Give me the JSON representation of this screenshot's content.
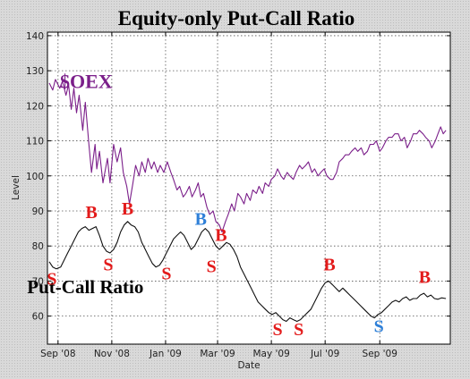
{
  "chart_data": {
    "type": "line",
    "title": "Equity-only Put-Call Ratio",
    "xlabel": "Date",
    "ylabel": "Level",
    "ylim": [
      52,
      141
    ],
    "xlim": [
      "2008-08-20",
      "2009-11-20"
    ],
    "yticks": [
      60,
      70,
      80,
      90,
      100,
      110,
      120,
      130,
      140
    ],
    "xticks": [
      {
        "date": "2008-09-01",
        "label": "Sep '08"
      },
      {
        "date": "2008-11-01",
        "label": "Nov '08"
      },
      {
        "date": "2009-01-01",
        "label": "Jan '09"
      },
      {
        "date": "2009-03-01",
        "label": "Mar '09"
      },
      {
        "date": "2009-05-01",
        "label": "May '09"
      },
      {
        "date": "2009-07-01",
        "label": "Jul '09"
      },
      {
        "date": "2009-09-01",
        "label": "Sep '09"
      }
    ],
    "grid": true,
    "colors": {
      "oex": "#7b1f8a",
      "ratio": "#111111",
      "buy_red": "#e31b1b",
      "sell_red": "#e31b1b",
      "blue": "#2f80d8"
    },
    "series": [
      {
        "name": "$OEX",
        "label_text": "$OEX",
        "label_at": {
          "date": "2008-10-03",
          "value": 125
        },
        "points": [
          [
            "2008-08-22",
            126.5
          ],
          [
            "2008-08-26",
            124.5
          ],
          [
            "2008-08-29",
            127.5
          ],
          [
            "2008-09-03",
            125
          ],
          [
            "2008-09-06",
            127
          ],
          [
            "2008-09-10",
            123
          ],
          [
            "2008-09-13",
            126
          ],
          [
            "2008-09-16",
            119
          ],
          [
            "2008-09-19",
            125
          ],
          [
            "2008-09-22",
            118
          ],
          [
            "2008-09-25",
            123
          ],
          [
            "2008-09-29",
            113
          ],
          [
            "2008-10-02",
            121
          ],
          [
            "2008-10-06",
            109
          ],
          [
            "2008-10-09",
            101
          ],
          [
            "2008-10-13",
            109
          ],
          [
            "2008-10-15",
            102
          ],
          [
            "2008-10-18",
            107
          ],
          [
            "2008-10-22",
            98
          ],
          [
            "2008-10-27",
            105
          ],
          [
            "2008-10-30",
            98
          ],
          [
            "2008-11-03",
            109
          ],
          [
            "2008-11-07",
            104
          ],
          [
            "2008-11-11",
            108
          ],
          [
            "2008-11-14",
            101
          ],
          [
            "2008-11-18",
            97
          ],
          [
            "2008-11-21",
            92
          ],
          [
            "2008-11-25",
            98
          ],
          [
            "2008-11-28",
            103
          ],
          [
            "2008-12-02",
            100
          ],
          [
            "2008-12-05",
            104
          ],
          [
            "2008-12-09",
            101
          ],
          [
            "2008-12-12",
            105
          ],
          [
            "2008-12-16",
            102
          ],
          [
            "2008-12-19",
            104
          ],
          [
            "2008-12-23",
            101
          ],
          [
            "2008-12-26",
            103
          ],
          [
            "2008-12-30",
            101
          ],
          [
            "2009-01-03",
            104
          ],
          [
            "2009-01-07",
            101
          ],
          [
            "2009-01-10",
            99
          ],
          [
            "2009-01-14",
            96
          ],
          [
            "2009-01-17",
            97
          ],
          [
            "2009-01-21",
            94
          ],
          [
            "2009-01-24",
            95
          ],
          [
            "2009-01-28",
            97
          ],
          [
            "2009-01-31",
            94
          ],
          [
            "2009-02-04",
            96
          ],
          [
            "2009-02-07",
            98
          ],
          [
            "2009-02-10",
            94
          ],
          [
            "2009-02-13",
            95
          ],
          [
            "2009-02-17",
            91
          ],
          [
            "2009-02-20",
            89
          ],
          [
            "2009-02-24",
            90
          ],
          [
            "2009-02-27",
            87
          ],
          [
            "2009-03-03",
            86
          ],
          [
            "2009-03-06",
            84
          ],
          [
            "2009-03-10",
            87
          ],
          [
            "2009-03-13",
            89
          ],
          [
            "2009-03-17",
            92
          ],
          [
            "2009-03-20",
            90
          ],
          [
            "2009-03-24",
            95
          ],
          [
            "2009-03-27",
            94
          ],
          [
            "2009-03-31",
            92
          ],
          [
            "2009-04-03",
            95
          ],
          [
            "2009-04-07",
            93
          ],
          [
            "2009-04-10",
            96
          ],
          [
            "2009-04-14",
            95
          ],
          [
            "2009-04-17",
            97
          ],
          [
            "2009-04-21",
            95
          ],
          [
            "2009-04-24",
            98
          ],
          [
            "2009-04-28",
            97
          ],
          [
            "2009-05-01",
            99
          ],
          [
            "2009-05-05",
            100
          ],
          [
            "2009-05-08",
            102
          ],
          [
            "2009-05-12",
            100
          ],
          [
            "2009-05-15",
            99
          ],
          [
            "2009-05-19",
            101
          ],
          [
            "2009-05-22",
            100
          ],
          [
            "2009-05-26",
            99
          ],
          [
            "2009-05-29",
            101
          ],
          [
            "2009-06-02",
            103
          ],
          [
            "2009-06-05",
            102
          ],
          [
            "2009-06-09",
            103
          ],
          [
            "2009-06-12",
            104
          ],
          [
            "2009-06-16",
            101
          ],
          [
            "2009-06-19",
            102
          ],
          [
            "2009-06-23",
            100
          ],
          [
            "2009-06-26",
            101
          ],
          [
            "2009-06-30",
            102
          ],
          [
            "2009-07-03",
            100
          ],
          [
            "2009-07-07",
            99
          ],
          [
            "2009-07-10",
            99
          ],
          [
            "2009-07-14",
            101
          ],
          [
            "2009-07-17",
            104
          ],
          [
            "2009-07-21",
            105
          ],
          [
            "2009-07-24",
            106
          ],
          [
            "2009-07-28",
            106
          ],
          [
            "2009-07-31",
            107
          ],
          [
            "2009-08-04",
            108
          ],
          [
            "2009-08-07",
            107
          ],
          [
            "2009-08-11",
            108
          ],
          [
            "2009-08-14",
            106
          ],
          [
            "2009-08-18",
            107
          ],
          [
            "2009-08-21",
            109
          ],
          [
            "2009-08-25",
            109
          ],
          [
            "2009-08-28",
            110
          ],
          [
            "2009-09-01",
            107
          ],
          [
            "2009-09-04",
            108
          ],
          [
            "2009-09-08",
            110
          ],
          [
            "2009-09-11",
            111
          ],
          [
            "2009-09-15",
            111
          ],
          [
            "2009-09-18",
            112
          ],
          [
            "2009-09-22",
            112
          ],
          [
            "2009-09-25",
            110
          ],
          [
            "2009-09-29",
            111
          ],
          [
            "2009-10-02",
            108
          ],
          [
            "2009-10-06",
            110
          ],
          [
            "2009-10-09",
            112
          ],
          [
            "2009-10-13",
            112
          ],
          [
            "2009-10-16",
            113
          ],
          [
            "2009-10-20",
            112
          ],
          [
            "2009-10-23",
            111
          ],
          [
            "2009-10-27",
            110
          ],
          [
            "2009-10-30",
            108
          ],
          [
            "2009-11-03",
            110
          ],
          [
            "2009-11-06",
            112
          ],
          [
            "2009-11-09",
            114
          ],
          [
            "2009-11-12",
            112
          ],
          [
            "2009-11-15",
            113
          ]
        ]
      },
      {
        "name": "Put-Call Ratio",
        "label_text": "Put-Call Ratio",
        "label_at": {
          "date": "2008-10-02",
          "value": 66.5
        },
        "points": [
          [
            "2008-08-22",
            75.5
          ],
          [
            "2008-08-26",
            74
          ],
          [
            "2008-08-30",
            73.5
          ],
          [
            "2008-09-04",
            74
          ],
          [
            "2008-09-08",
            76
          ],
          [
            "2008-09-12",
            78
          ],
          [
            "2008-09-16",
            80
          ],
          [
            "2008-09-20",
            82
          ],
          [
            "2008-09-24",
            84
          ],
          [
            "2008-09-28",
            85
          ],
          [
            "2008-10-02",
            85.5
          ],
          [
            "2008-10-06",
            84.5
          ],
          [
            "2008-10-10",
            85
          ],
          [
            "2008-10-14",
            85.5
          ],
          [
            "2008-10-18",
            83
          ],
          [
            "2008-10-22",
            80
          ],
          [
            "2008-10-26",
            78.5
          ],
          [
            "2008-10-30",
            78
          ],
          [
            "2008-11-03",
            79
          ],
          [
            "2008-11-07",
            81
          ],
          [
            "2008-11-11",
            84
          ],
          [
            "2008-11-15",
            86
          ],
          [
            "2008-11-19",
            87
          ],
          [
            "2008-11-23",
            86
          ],
          [
            "2008-11-27",
            85.5
          ],
          [
            "2008-12-01",
            84
          ],
          [
            "2008-12-05",
            81
          ],
          [
            "2008-12-09",
            79
          ],
          [
            "2008-12-13",
            77
          ],
          [
            "2008-12-17",
            75
          ],
          [
            "2008-12-21",
            74
          ],
          [
            "2008-12-25",
            74.5
          ],
          [
            "2008-12-29",
            76
          ],
          [
            "2009-01-02",
            78
          ],
          [
            "2009-01-06",
            80
          ],
          [
            "2009-01-10",
            82
          ],
          [
            "2009-01-14",
            83
          ],
          [
            "2009-01-18",
            84
          ],
          [
            "2009-01-22",
            83
          ],
          [
            "2009-01-26",
            81
          ],
          [
            "2009-01-30",
            79
          ],
          [
            "2009-02-03",
            80
          ],
          [
            "2009-02-07",
            82
          ],
          [
            "2009-02-11",
            84
          ],
          [
            "2009-02-15",
            85
          ],
          [
            "2009-02-19",
            84
          ],
          [
            "2009-02-23",
            82
          ],
          [
            "2009-02-27",
            80
          ],
          [
            "2009-03-03",
            79
          ],
          [
            "2009-03-07",
            80
          ],
          [
            "2009-03-11",
            81
          ],
          [
            "2009-03-15",
            80.5
          ],
          [
            "2009-03-19",
            79
          ],
          [
            "2009-03-23",
            77
          ],
          [
            "2009-03-27",
            74
          ],
          [
            "2009-03-31",
            72
          ],
          [
            "2009-04-04",
            70
          ],
          [
            "2009-04-08",
            68
          ],
          [
            "2009-04-12",
            66
          ],
          [
            "2009-04-16",
            64
          ],
          [
            "2009-04-20",
            63
          ],
          [
            "2009-04-24",
            62
          ],
          [
            "2009-04-28",
            61
          ],
          [
            "2009-05-02",
            60.5
          ],
          [
            "2009-05-06",
            61
          ],
          [
            "2009-05-10",
            60
          ],
          [
            "2009-05-14",
            59
          ],
          [
            "2009-05-18",
            58.5
          ],
          [
            "2009-05-22",
            59.5
          ],
          [
            "2009-05-26",
            59
          ],
          [
            "2009-05-30",
            58.5
          ],
          [
            "2009-06-03",
            59
          ],
          [
            "2009-06-07",
            60
          ],
          [
            "2009-06-11",
            61
          ],
          [
            "2009-06-15",
            62
          ],
          [
            "2009-06-19",
            64
          ],
          [
            "2009-06-23",
            66
          ],
          [
            "2009-06-27",
            68
          ],
          [
            "2009-07-01",
            69.5
          ],
          [
            "2009-07-05",
            70
          ],
          [
            "2009-07-09",
            69
          ],
          [
            "2009-07-13",
            68
          ],
          [
            "2009-07-17",
            67
          ],
          [
            "2009-07-21",
            68
          ],
          [
            "2009-07-25",
            67
          ],
          [
            "2009-07-29",
            66
          ],
          [
            "2009-08-02",
            65
          ],
          [
            "2009-08-06",
            64
          ],
          [
            "2009-08-10",
            63
          ],
          [
            "2009-08-14",
            62
          ],
          [
            "2009-08-18",
            61
          ],
          [
            "2009-08-22",
            60
          ],
          [
            "2009-08-26",
            59.5
          ],
          [
            "2009-08-30",
            60.5
          ],
          [
            "2009-09-03",
            61
          ],
          [
            "2009-09-07",
            62
          ],
          [
            "2009-09-11",
            63
          ],
          [
            "2009-09-15",
            64
          ],
          [
            "2009-09-19",
            64.5
          ],
          [
            "2009-09-23",
            64
          ],
          [
            "2009-09-27",
            65
          ],
          [
            "2009-10-01",
            65.5
          ],
          [
            "2009-10-05",
            64.5
          ],
          [
            "2009-10-09",
            65
          ],
          [
            "2009-10-13",
            65
          ],
          [
            "2009-10-17",
            66
          ],
          [
            "2009-10-21",
            66.5
          ],
          [
            "2009-10-25",
            65.5
          ],
          [
            "2009-10-29",
            66
          ],
          [
            "2009-11-02",
            65
          ],
          [
            "2009-11-06",
            64.8
          ],
          [
            "2009-11-10",
            65.2
          ],
          [
            "2009-11-15",
            65
          ]
        ]
      }
    ],
    "annotations": [
      {
        "text": "S",
        "date": "2008-08-25",
        "value": 69,
        "color": "#e31b1b"
      },
      {
        "text": "B",
        "date": "2008-10-09",
        "value": 88,
        "color": "#e31b1b"
      },
      {
        "text": "S",
        "date": "2008-10-28",
        "value": 73,
        "color": "#e31b1b"
      },
      {
        "text": "B",
        "date": "2008-11-19",
        "value": 89,
        "color": "#e31b1b"
      },
      {
        "text": "S",
        "date": "2009-01-02",
        "value": 70.5,
        "color": "#e31b1b"
      },
      {
        "text": "B",
        "date": "2009-02-10",
        "value": 86,
        "color": "#2f80d8"
      },
      {
        "text": "S",
        "date": "2009-02-22",
        "value": 72.5,
        "color": "#e31b1b"
      },
      {
        "text": "B",
        "date": "2009-03-05",
        "value": 81.5,
        "color": "#e31b1b"
      },
      {
        "text": "S",
        "date": "2009-05-08",
        "value": 54.5,
        "color": "#e31b1b"
      },
      {
        "text": "S",
        "date": "2009-06-01",
        "value": 54.5,
        "color": "#e31b1b"
      },
      {
        "text": "B",
        "date": "2009-07-06",
        "value": 73,
        "color": "#e31b1b"
      },
      {
        "text": "S",
        "date": "2009-08-31",
        "value": 55.5,
        "color": "#2f80d8"
      },
      {
        "text": "B",
        "date": "2009-10-22",
        "value": 69.5,
        "color": "#e31b1b"
      }
    ]
  }
}
